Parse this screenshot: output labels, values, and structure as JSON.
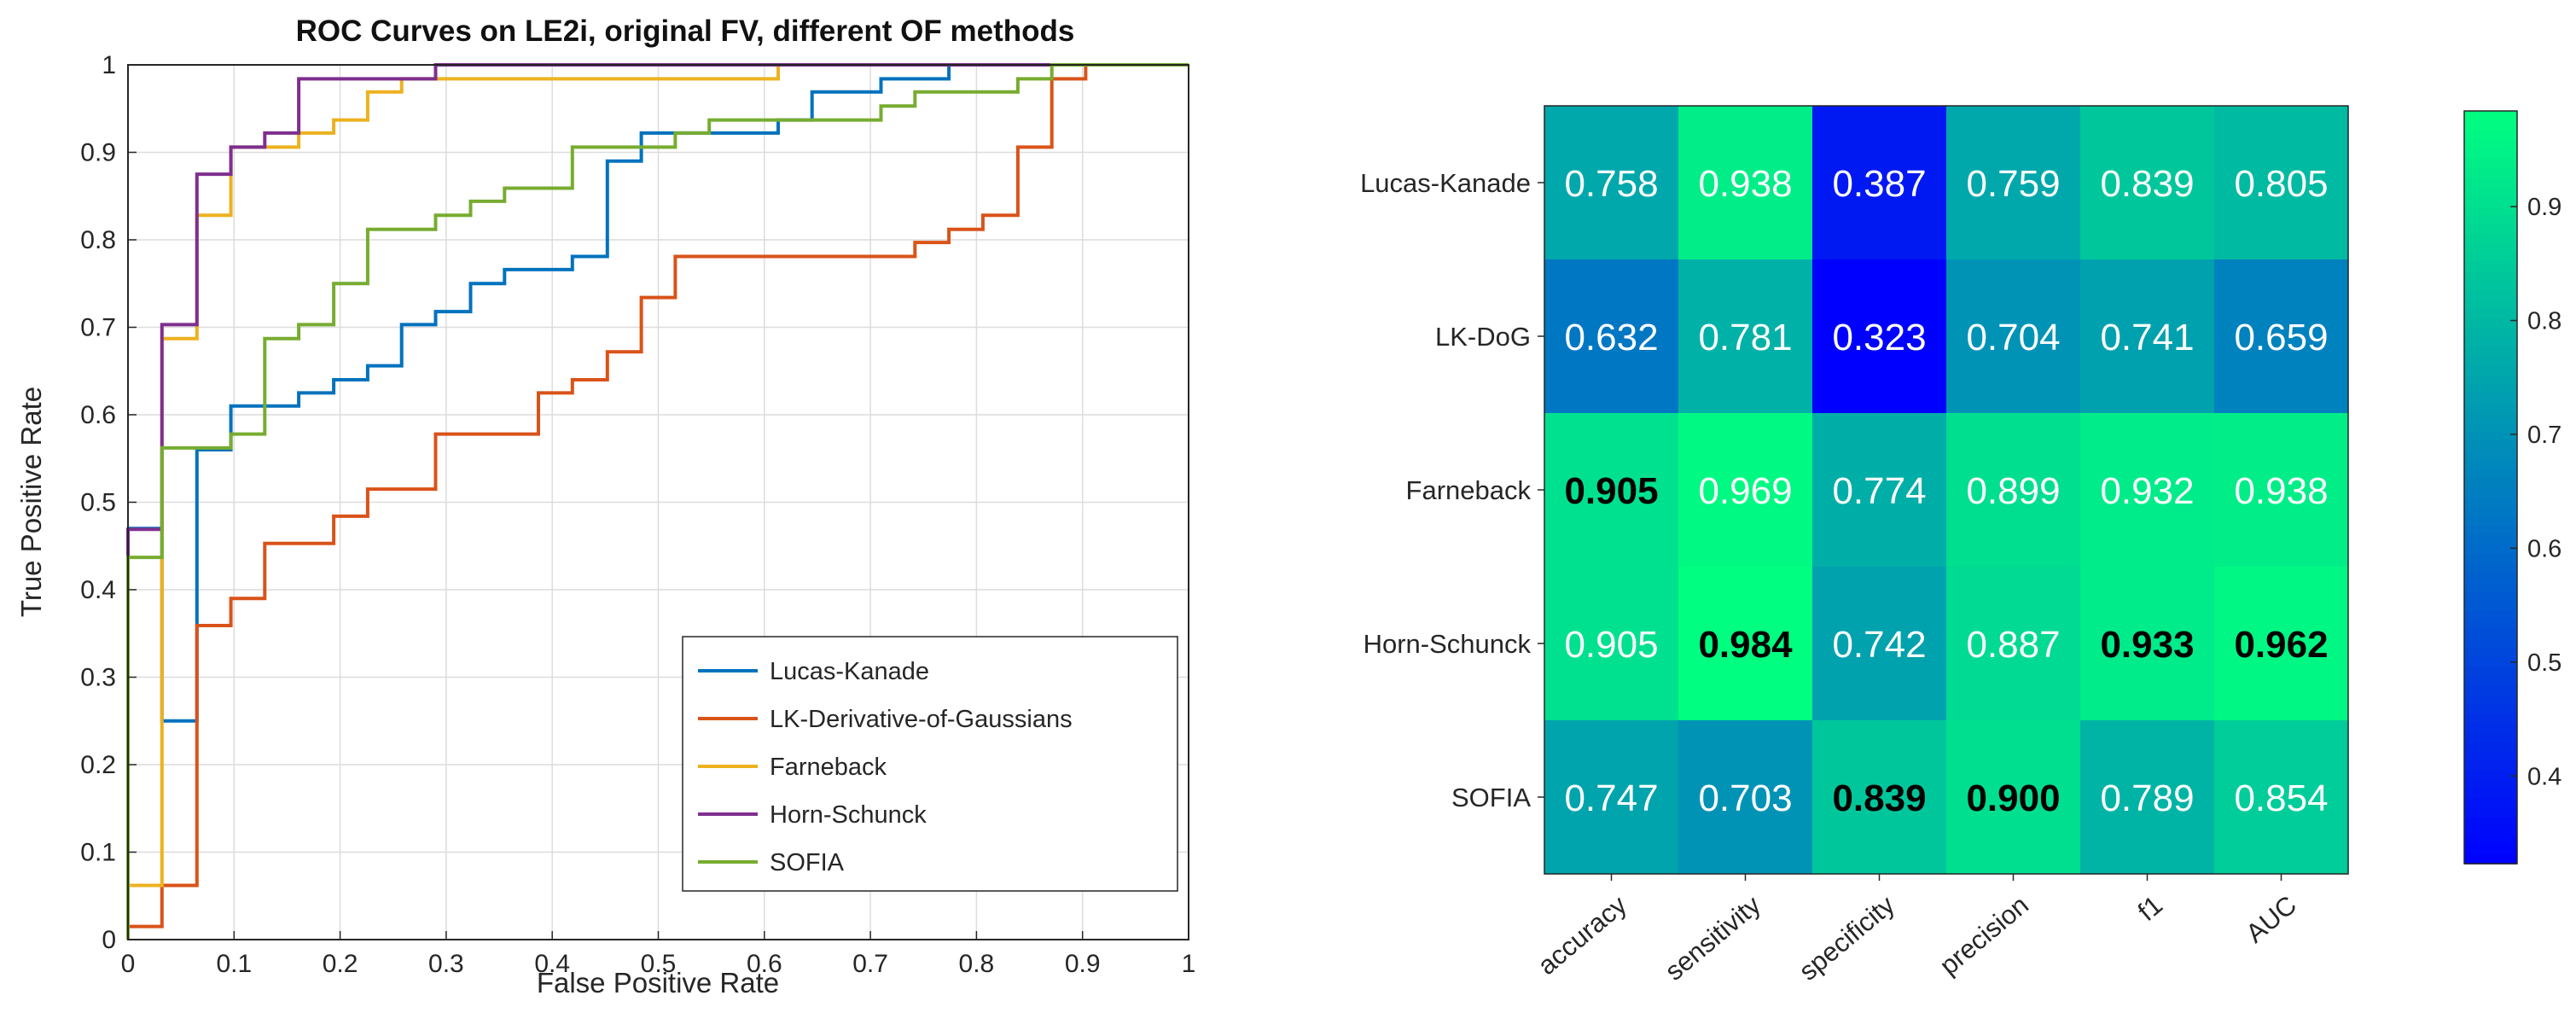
{
  "chart_data": [
    {
      "type": "line",
      "title": "ROC Curves on LE2i, original FV, different OF methods",
      "xlabel": "False Positive Rate",
      "ylabel": "True Positive Rate",
      "xlim": [
        0,
        1
      ],
      "ylim": [
        0,
        1
      ],
      "grid": true,
      "xticks": [
        "0",
        "0.1",
        "0.2",
        "0.3",
        "0.4",
        "0.5",
        "0.6",
        "0.7",
        "0.8",
        "0.9",
        "1"
      ],
      "yticks": [
        "0",
        "0.1",
        "0.2",
        "0.3",
        "0.4",
        "0.5",
        "0.6",
        "0.7",
        "0.8",
        "0.9",
        "1"
      ],
      "legend_position": "bottom-right",
      "series": [
        {
          "name": "Lucas-Kanade",
          "color": "#0072BD",
          "points": [
            [
              0,
              0.47
            ],
            [
              0.032,
              0.47
            ],
            [
              0.032,
              0.25
            ],
            [
              0.065,
              0.25
            ],
            [
              0.065,
              0.56
            ],
            [
              0.065,
              0.36
            ],
            [
              0.065,
              0.56
            ],
            [
              0.097,
              0.56
            ],
            [
              0.097,
              0.61
            ],
            [
              0.129,
              0.61
            ],
            [
              0.161,
              0.61
            ],
            [
              0.161,
              0.625
            ],
            [
              0.194,
              0.625
            ],
            [
              0.194,
              0.64
            ],
            [
              0.226,
              0.64
            ],
            [
              0.226,
              0.656
            ],
            [
              0.258,
              0.656
            ],
            [
              0.258,
              0.703
            ],
            [
              0.29,
              0.703
            ],
            [
              0.29,
              0.718
            ],
            [
              0.323,
              0.718
            ],
            [
              0.323,
              0.75
            ],
            [
              0.355,
              0.75
            ],
            [
              0.355,
              0.766
            ],
            [
              0.419,
              0.766
            ],
            [
              0.419,
              0.781
            ],
            [
              0.452,
              0.781
            ],
            [
              0.452,
              0.89
            ],
            [
              0.484,
              0.89
            ],
            [
              0.484,
              0.922
            ],
            [
              0.613,
              0.922
            ],
            [
              0.613,
              0.937
            ],
            [
              0.645,
              0.937
            ],
            [
              0.645,
              0.969
            ],
            [
              0.71,
              0.969
            ],
            [
              0.71,
              0.984
            ],
            [
              0.774,
              0.984
            ],
            [
              0.774,
              1
            ],
            [
              1,
              1
            ]
          ]
        },
        {
          "name": "LK-Derivative-of-Gaussians",
          "color": "#D95319",
          "points": [
            [
              0,
              0
            ],
            [
              0,
              0.015
            ],
            [
              0.032,
              0.015
            ],
            [
              0.032,
              0.062
            ],
            [
              0.065,
              0.062
            ],
            [
              0.065,
              0.359
            ],
            [
              0.097,
              0.359
            ],
            [
              0.097,
              0.39
            ],
            [
              0.129,
              0.39
            ],
            [
              0.129,
              0.453
            ],
            [
              0.194,
              0.453
            ],
            [
              0.194,
              0.484
            ],
            [
              0.226,
              0.484
            ],
            [
              0.226,
              0.515
            ],
            [
              0.29,
              0.515
            ],
            [
              0.29,
              0.578
            ],
            [
              0.387,
              0.578
            ],
            [
              0.387,
              0.625
            ],
            [
              0.419,
              0.625
            ],
            [
              0.419,
              0.64
            ],
            [
              0.452,
              0.64
            ],
            [
              0.452,
              0.672
            ],
            [
              0.484,
              0.672
            ],
            [
              0.484,
              0.734
            ],
            [
              0.516,
              0.734
            ],
            [
              0.516,
              0.781
            ],
            [
              0.742,
              0.781
            ],
            [
              0.742,
              0.797
            ],
            [
              0.774,
              0.797
            ],
            [
              0.774,
              0.812
            ],
            [
              0.806,
              0.812
            ],
            [
              0.806,
              0.828
            ],
            [
              0.839,
              0.828
            ],
            [
              0.839,
              0.906
            ],
            [
              0.871,
              0.906
            ],
            [
              0.871,
              0.984
            ],
            [
              0.903,
              0.984
            ],
            [
              0.903,
              1
            ],
            [
              1,
              1
            ]
          ]
        },
        {
          "name": "Farneback",
          "color": "#EDB120",
          "points": [
            [
              0,
              0
            ],
            [
              0,
              0.062
            ],
            [
              0.032,
              0.062
            ],
            [
              0.032,
              0.687
            ],
            [
              0.065,
              0.687
            ],
            [
              0.065,
              0.828
            ],
            [
              0.097,
              0.828
            ],
            [
              0.097,
              0.906
            ],
            [
              0.161,
              0.906
            ],
            [
              0.161,
              0.922
            ],
            [
              0.194,
              0.922
            ],
            [
              0.194,
              0.937
            ],
            [
              0.226,
              0.937
            ],
            [
              0.226,
              0.969
            ],
            [
              0.258,
              0.969
            ],
            [
              0.258,
              0.984
            ],
            [
              0.613,
              0.984
            ],
            [
              0.613,
              1
            ],
            [
              1,
              1
            ]
          ]
        },
        {
          "name": "Horn-Schunck",
          "color": "#7E2F8E",
          "points": [
            [
              0,
              0
            ],
            [
              0,
              0.469
            ],
            [
              0.032,
              0.469
            ],
            [
              0.032,
              0.703
            ],
            [
              0.065,
              0.703
            ],
            [
              0.065,
              0.875
            ],
            [
              0.097,
              0.875
            ],
            [
              0.097,
              0.906
            ],
            [
              0.129,
              0.906
            ],
            [
              0.129,
              0.922
            ],
            [
              0.161,
              0.922
            ],
            [
              0.161,
              0.984
            ],
            [
              0.29,
              0.984
            ],
            [
              0.29,
              1
            ],
            [
              1,
              1
            ]
          ]
        },
        {
          "name": "SOFIA",
          "color": "#77AC30",
          "points": [
            [
              0,
              0
            ],
            [
              0,
              0.437
            ],
            [
              0.032,
              0.437
            ],
            [
              0.032,
              0.562
            ],
            [
              0.097,
              0.562
            ],
            [
              0.097,
              0.578
            ],
            [
              0.129,
              0.578
            ],
            [
              0.129,
              0.687
            ],
            [
              0.161,
              0.687
            ],
            [
              0.161,
              0.703
            ],
            [
              0.194,
              0.703
            ],
            [
              0.194,
              0.75
            ],
            [
              0.226,
              0.75
            ],
            [
              0.226,
              0.812
            ],
            [
              0.29,
              0.812
            ],
            [
              0.29,
              0.828
            ],
            [
              0.323,
              0.828
            ],
            [
              0.323,
              0.844
            ],
            [
              0.355,
              0.844
            ],
            [
              0.355,
              0.859
            ],
            [
              0.419,
              0.859
            ],
            [
              0.419,
              0.906
            ],
            [
              0.516,
              0.906
            ],
            [
              0.516,
              0.922
            ],
            [
              0.548,
              0.922
            ],
            [
              0.548,
              0.937
            ],
            [
              0.71,
              0.937
            ],
            [
              0.71,
              0.953
            ],
            [
              0.742,
              0.953
            ],
            [
              0.742,
              0.969
            ],
            [
              0.839,
              0.969
            ],
            [
              0.839,
              0.984
            ],
            [
              0.871,
              0.984
            ],
            [
              0.871,
              1
            ],
            [
              1,
              1
            ]
          ]
        }
      ]
    },
    {
      "type": "heatmap",
      "title": "",
      "rows": [
        "Lucas-Kanade",
        "LK-DoG",
        "Farneback",
        "Horn-Schunck",
        "SOFIA"
      ],
      "columns": [
        "accuracy",
        "sensitivity",
        "specificity",
        "precision",
        "f1",
        "AUC"
      ],
      "labels": [
        [
          "0.758",
          "0.938",
          "0.387",
          "0.759",
          "0.839",
          "0.805"
        ],
        [
          "0.632",
          "0.781",
          "0.323",
          "0.704",
          "0.741",
          "0.659"
        ],
        [
          "0.905",
          "0.969",
          "0.774",
          "0.899",
          "0.932",
          "0.938"
        ],
        [
          "0.905",
          "0.984",
          "0.742",
          "0.887",
          "0.933",
          "0.962"
        ],
        [
          "0.747",
          "0.703",
          "0.839",
          "0.900",
          "0.789",
          "0.854"
        ]
      ],
      "bold": [
        [
          false,
          false,
          false,
          false,
          false,
          false
        ],
        [
          false,
          false,
          false,
          false,
          false,
          false
        ],
        [
          true,
          false,
          false,
          false,
          false,
          false
        ],
        [
          false,
          true,
          false,
          false,
          true,
          true
        ],
        [
          false,
          false,
          true,
          true,
          false,
          false
        ]
      ],
      "clim": [
        0.323,
        0.984
      ],
      "colorbar_ticks": [
        "0.4",
        "0.5",
        "0.6",
        "0.7",
        "0.8",
        "0.9"
      ],
      "colormap": "winter"
    }
  ]
}
